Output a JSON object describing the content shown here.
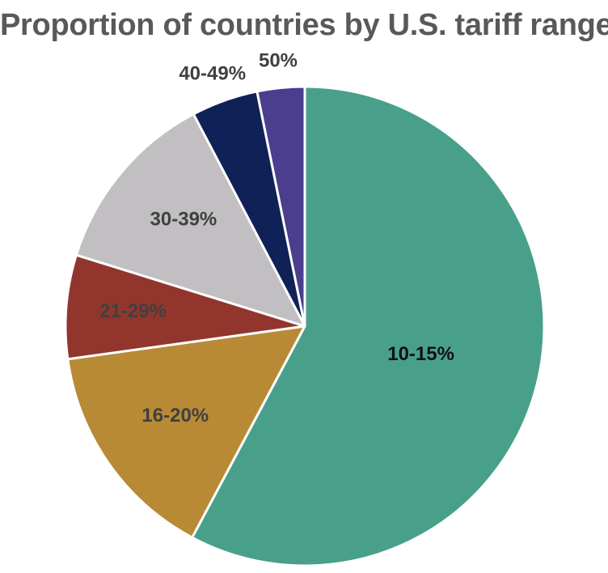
{
  "chart_data": {
    "type": "pie",
    "title": "Proportion of countries by U.S. tariff range",
    "start_angle_deg": 0,
    "direction": "clockwise",
    "slices": [
      {
        "label": "10-15%",
        "value": 57.8,
        "color": "#49A08A",
        "label_color": "#111111"
      },
      {
        "label": "16-20%",
        "value": 15.0,
        "color": "#B88A36",
        "label_color": "#404040"
      },
      {
        "label": "21-29%",
        "value": 7.0,
        "color": "#92362D",
        "label_color": "#404040"
      },
      {
        "label": "30-39%",
        "value": 12.5,
        "color": "#C1BFC2",
        "label_color": "#404040"
      },
      {
        "label": "40-49%",
        "value": 4.5,
        "color": "#0F2157",
        "label_color": "#404040"
      },
      {
        "label": "50%",
        "value": 3.2,
        "color": "#4B3E8E",
        "label_color": "#404040"
      }
    ]
  }
}
